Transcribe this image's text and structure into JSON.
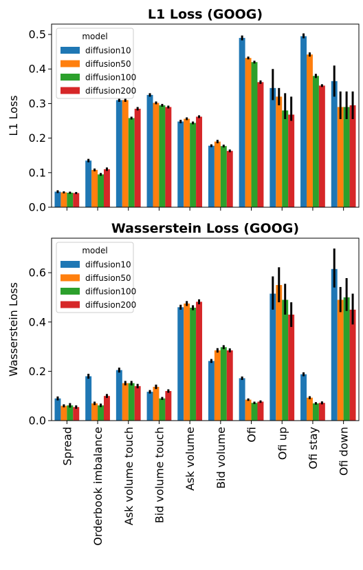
{
  "chart_data": [
    {
      "type": "bar",
      "title": "L1 Loss (GOOG)",
      "xlabel": "",
      "ylabel": "L1 Loss",
      "ylim": [
        0,
        0.53
      ],
      "yticks": [
        0.0,
        0.1,
        0.2,
        0.3,
        0.4,
        0.5
      ],
      "ytick_labels": [
        "0.0",
        "0.1",
        "0.2",
        "0.3",
        "0.4",
        "0.5"
      ],
      "grid": false,
      "legend_position": "top-left",
      "legend_title": "model",
      "categories": [
        "Spread",
        "Orderbook imbalance",
        "Ask volume touch",
        "Bid volume touch",
        "Ask volume",
        "Bid volume",
        "Ofi",
        "Ofi up",
        "Ofi stay",
        "Ofi down"
      ],
      "series": [
        {
          "name": "diffusion10",
          "color": "#1f77b4",
          "values": [
            0.045,
            0.135,
            0.31,
            0.325,
            0.248,
            0.178,
            0.49,
            0.345,
            0.495,
            0.365
          ],
          "error": [
            [
              0.041,
              0.049
            ],
            [
              0.13,
              0.14
            ],
            [
              0.305,
              0.315
            ],
            [
              0.32,
              0.33
            ],
            [
              0.243,
              0.253
            ],
            [
              0.174,
              0.182
            ],
            [
              0.483,
              0.497
            ],
            [
              0.31,
              0.4
            ],
            [
              0.489,
              0.503
            ],
            [
              0.32,
              0.41
            ]
          ]
        },
        {
          "name": "diffusion50",
          "color": "#ff7f0e",
          "values": [
            0.043,
            0.108,
            0.31,
            0.302,
            0.256,
            0.19,
            0.432,
            0.32,
            0.442,
            0.29
          ],
          "error": [
            [
              0.04,
              0.046
            ],
            [
              0.104,
              0.112
            ],
            [
              0.305,
              0.315
            ],
            [
              0.298,
              0.306
            ],
            [
              0.252,
              0.26
            ],
            [
              0.185,
              0.195
            ],
            [
              0.428,
              0.436
            ],
            [
              0.295,
              0.345
            ],
            [
              0.436,
              0.448
            ],
            [
              0.255,
              0.335
            ]
          ]
        },
        {
          "name": "diffusion100",
          "color": "#2ca02c",
          "values": [
            0.042,
            0.095,
            0.258,
            0.295,
            0.244,
            0.177,
            0.42,
            0.28,
            0.38,
            0.29
          ],
          "error": [
            [
              0.039,
              0.045
            ],
            [
              0.091,
              0.099
            ],
            [
              0.254,
              0.262
            ],
            [
              0.291,
              0.299
            ],
            [
              0.24,
              0.248
            ],
            [
              0.173,
              0.181
            ],
            [
              0.416,
              0.424
            ],
            [
              0.255,
              0.33
            ],
            [
              0.374,
              0.386
            ],
            [
              0.255,
              0.335
            ]
          ]
        },
        {
          "name": "diffusion200",
          "color": "#d62728",
          "values": [
            0.041,
            0.11,
            0.285,
            0.29,
            0.262,
            0.163,
            0.362,
            0.268,
            0.352,
            0.295
          ],
          "error": [
            [
              0.038,
              0.044
            ],
            [
              0.105,
              0.115
            ],
            [
              0.28,
              0.29
            ],
            [
              0.286,
              0.294
            ],
            [
              0.258,
              0.266
            ],
            [
              0.159,
              0.167
            ],
            [
              0.357,
              0.367
            ],
            [
              0.25,
              0.32
            ],
            [
              0.348,
              0.356
            ],
            [
              0.255,
              0.335
            ]
          ]
        }
      ]
    },
    {
      "type": "bar",
      "title": "Wasserstein Loss (GOOG)",
      "xlabel": "",
      "ylabel": "Wasserstein Loss",
      "ylim": [
        0,
        0.74
      ],
      "yticks": [
        0.0,
        0.2,
        0.4,
        0.6
      ],
      "ytick_labels": [
        "0.0",
        "0.2",
        "0.4",
        "0.6"
      ],
      "grid": false,
      "legend_position": "top-left",
      "legend_title": "model",
      "categories": [
        "Spread",
        "Orderbook imbalance",
        "Ask volume touch",
        "Bid volume touch",
        "Ask volume",
        "Bid volume",
        "Ofi",
        "Ofi up",
        "Ofi stay",
        "Ofi down"
      ],
      "series": [
        {
          "name": "diffusion10",
          "color": "#1f77b4",
          "values": [
            0.09,
            0.18,
            0.205,
            0.117,
            0.46,
            0.242,
            0.172,
            0.515,
            0.188,
            0.615
          ],
          "error": [
            [
              0.082,
              0.098
            ],
            [
              0.17,
              0.19
            ],
            [
              0.195,
              0.215
            ],
            [
              0.11,
              0.124
            ],
            [
              0.45,
              0.47
            ],
            [
              0.234,
              0.25
            ],
            [
              0.165,
              0.179
            ],
            [
              0.45,
              0.585
            ],
            [
              0.18,
              0.196
            ],
            [
              0.54,
              0.698
            ]
          ]
        },
        {
          "name": "diffusion50",
          "color": "#ff7f0e",
          "values": [
            0.06,
            0.07,
            0.152,
            0.137,
            0.475,
            0.285,
            0.085,
            0.55,
            0.093,
            0.49
          ],
          "error": [
            [
              0.054,
              0.066
            ],
            [
              0.063,
              0.077
            ],
            [
              0.143,
              0.161
            ],
            [
              0.128,
              0.146
            ],
            [
              0.465,
              0.485
            ],
            [
              0.276,
              0.294
            ],
            [
              0.08,
              0.09
            ],
            [
              0.48,
              0.622
            ],
            [
              0.087,
              0.099
            ],
            [
              0.44,
              0.542
            ]
          ]
        },
        {
          "name": "diffusion100",
          "color": "#2ca02c",
          "values": [
            0.062,
            0.062,
            0.152,
            0.09,
            0.458,
            0.298,
            0.072,
            0.49,
            0.07,
            0.5
          ],
          "error": [
            [
              0.053,
              0.071
            ],
            [
              0.055,
              0.069
            ],
            [
              0.143,
              0.161
            ],
            [
              0.084,
              0.096
            ],
            [
              0.448,
              0.468
            ],
            [
              0.29,
              0.306
            ],
            [
              0.067,
              0.077
            ],
            [
              0.43,
              0.555
            ],
            [
              0.065,
              0.075
            ],
            [
              0.445,
              0.578
            ]
          ]
        },
        {
          "name": "diffusion200",
          "color": "#d62728",
          "values": [
            0.055,
            0.1,
            0.14,
            0.12,
            0.482,
            0.285,
            0.077,
            0.43,
            0.072,
            0.45
          ],
          "error": [
            [
              0.048,
              0.062
            ],
            [
              0.092,
              0.108
            ],
            [
              0.131,
              0.149
            ],
            [
              0.113,
              0.127
            ],
            [
              0.472,
              0.492
            ],
            [
              0.277,
              0.293
            ],
            [
              0.072,
              0.082
            ],
            [
              0.38,
              0.48
            ],
            [
              0.066,
              0.078
            ],
            [
              0.39,
              0.515
            ]
          ]
        }
      ]
    }
  ]
}
